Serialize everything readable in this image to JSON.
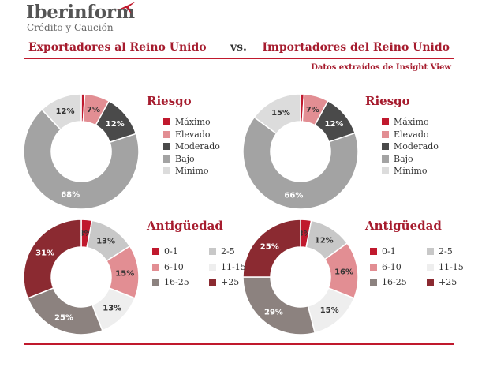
{
  "header": {
    "brand": "Iberinform",
    "brand_sub": "Crédito y Caución",
    "left_title": "Exportadores al Reino Unido",
    "vs": "vs.",
    "right_title": "Importadores del Reino Unido",
    "source": "Datos extraídos de Insight View"
  },
  "colors": {
    "brand_red": "#c0192d",
    "title_red": "#a61c2e"
  },
  "chart_data": [
    {
      "type": "pie",
      "title": "Riesgo",
      "panel": "Exportadores al Reino Unido",
      "categories": [
        "Máximo",
        "Elevado",
        "Moderado",
        "Bajo",
        "Mínimo"
      ],
      "values": [
        1,
        7,
        12,
        68,
        12
      ],
      "labels": [
        "",
        "7%",
        "12%",
        "68%",
        "12%"
      ],
      "colors": [
        "#c0192d",
        "#e28e93",
        "#4a4a4a",
        "#a3a3a3",
        "#dcdcdc"
      ]
    },
    {
      "type": "pie",
      "title": "Riesgo",
      "panel": "Importadores del Reino Unido",
      "categories": [
        "Máximo",
        "Elevado",
        "Moderado",
        "Bajo",
        "Mínimo"
      ],
      "values": [
        1,
        7,
        12,
        66,
        15
      ],
      "labels": [
        "",
        "7%",
        "12%",
        "66%",
        "15%"
      ],
      "colors": [
        "#c0192d",
        "#e28e93",
        "#4a4a4a",
        "#a3a3a3",
        "#dcdcdc"
      ]
    },
    {
      "type": "pie",
      "title": "Antigüedad",
      "panel": "Exportadores al Reino Unido",
      "categories": [
        "0-1",
        "2-5",
        "6-10",
        "11-15",
        "16-25",
        "+25"
      ],
      "values": [
        3,
        13,
        15,
        13,
        25,
        31
      ],
      "labels": [
        "3%",
        "13%",
        "15%",
        "13%",
        "25%",
        "31%"
      ],
      "colors": [
        "#c0192d",
        "#c8c8c8",
        "#e28e93",
        "#eeeeee",
        "#8c827f",
        "#8b2a31"
      ]
    },
    {
      "type": "pie",
      "title": "Antigüedad",
      "panel": "Importadores del Reino Unido",
      "categories": [
        "0-1",
        "2-5",
        "6-10",
        "11-15",
        "16-25",
        "+25"
      ],
      "values": [
        3,
        12,
        16,
        15,
        29,
        25
      ],
      "labels": [
        "3%",
        "12%",
        "16%",
        "15%",
        "29%",
        "25%"
      ],
      "colors": [
        "#c0192d",
        "#c8c8c8",
        "#e28e93",
        "#eeeeee",
        "#8c827f",
        "#8b2a31"
      ]
    }
  ]
}
